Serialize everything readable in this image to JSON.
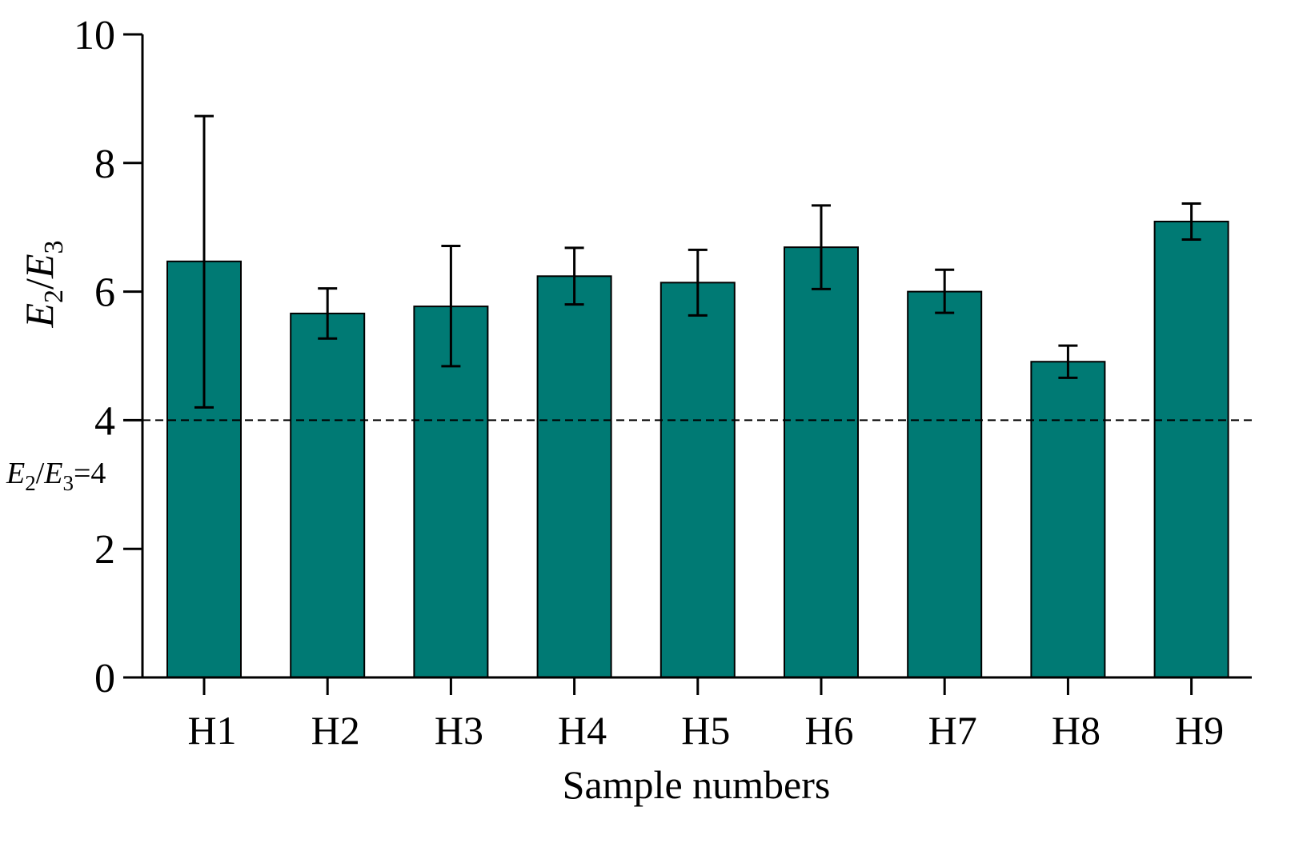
{
  "chart_data": {
    "type": "bar",
    "categories": [
      "H1",
      "H2",
      "H3",
      "H4",
      "H5",
      "H6",
      "H7",
      "H8",
      "H9"
    ],
    "values": [
      6.47,
      5.66,
      5.77,
      6.24,
      6.14,
      6.69,
      6.0,
      4.91,
      7.09
    ],
    "error_low": [
      4.2,
      5.27,
      4.84,
      5.8,
      5.63,
      6.04,
      5.67,
      4.66,
      6.81
    ],
    "error_high": [
      8.73,
      6.05,
      6.71,
      6.68,
      6.65,
      7.34,
      6.34,
      5.16,
      7.37
    ],
    "bar_color": "#007a74",
    "ylim": [
      0,
      10
    ],
    "yticks": [
      "0",
      "2",
      "4",
      "6",
      "8",
      "10"
    ],
    "ylabel": {
      "e2": "E",
      "sub2": "2",
      "slash": "/",
      "e3": "E",
      "sub3": "3"
    },
    "xlabel": "Sample numbers",
    "reference_line": {
      "value": 4,
      "style": "dashed",
      "label": {
        "e2": "E",
        "sub2": "2",
        "slash": "/",
        "e3": "E",
        "sub3": "3",
        "suffix": "=4"
      }
    },
    "grid": false,
    "legend": "none"
  }
}
